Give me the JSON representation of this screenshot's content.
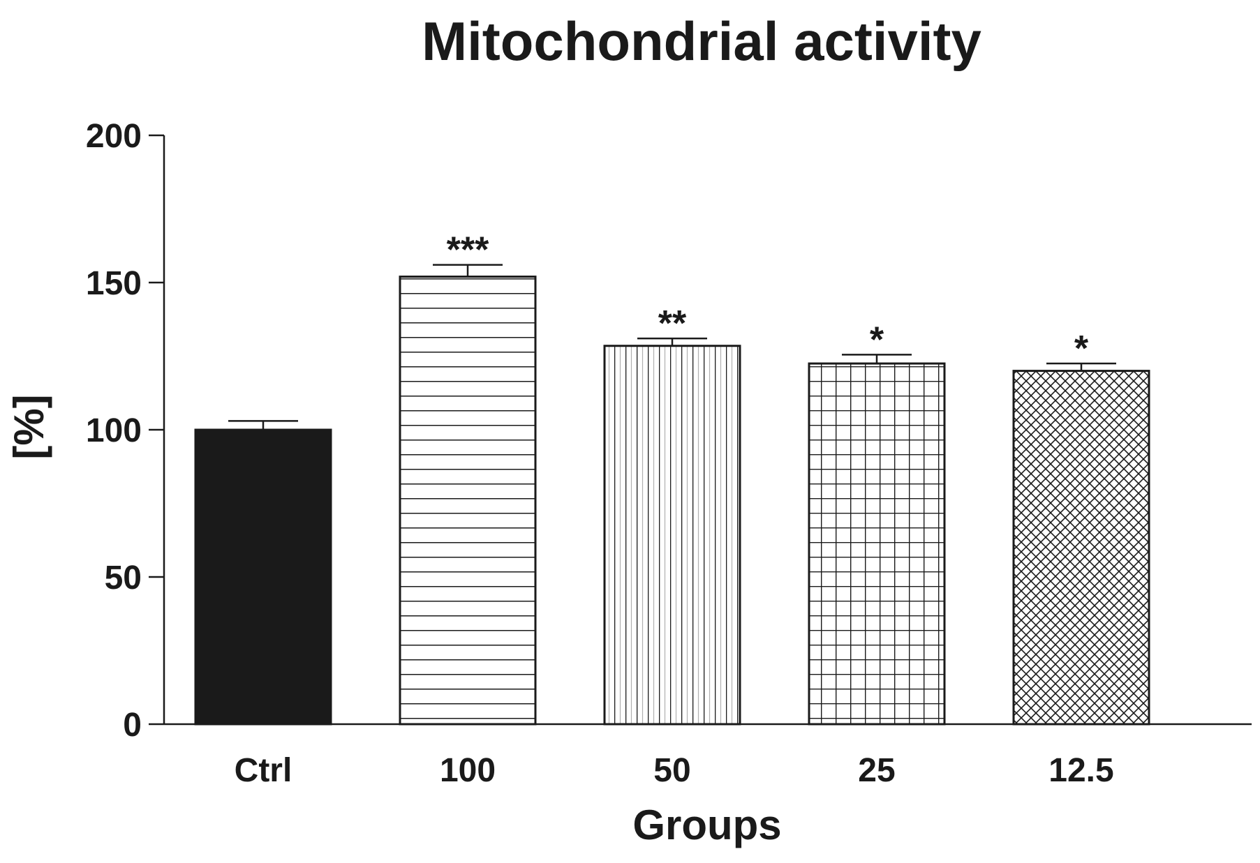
{
  "chart_data": {
    "type": "bar",
    "title": "Mitochondrial activity",
    "xlabel": "Groups",
    "ylabel": "[%]",
    "categories": [
      "Ctrl",
      "100",
      "50",
      "25",
      "12.5"
    ],
    "values": [
      100,
      152,
      128.5,
      122.5,
      120
    ],
    "errors": [
      3,
      4,
      2.5,
      3,
      2.5
    ],
    "significance": [
      "",
      "***",
      "**",
      "*",
      "*"
    ],
    "patterns": [
      "solid",
      "horizontal",
      "vertical",
      "grid",
      "crosshatch"
    ],
    "ylim": [
      0,
      200
    ],
    "yticks": [
      0,
      50,
      100,
      150,
      200
    ],
    "ytick_labels": [
      "0",
      "50",
      "100",
      "150",
      "200"
    ],
    "colors": {
      "ink": "#1a1a1a",
      "fill": "#ffffff",
      "pattern_light": "#c8c8c8"
    }
  }
}
